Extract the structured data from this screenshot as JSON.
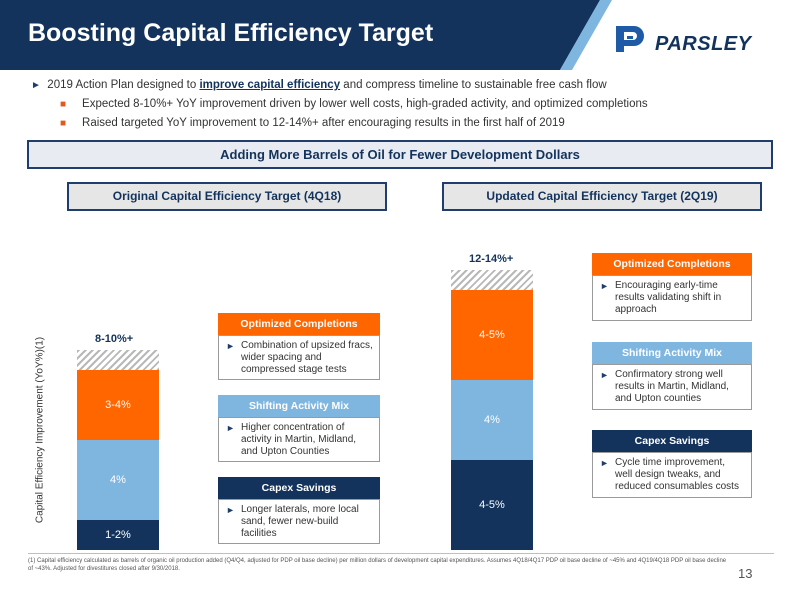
{
  "header": {
    "title": "Boosting Capital Efficiency Target",
    "logo_text": "PARSLEY",
    "colors": {
      "navy": "#13335c",
      "orange": "#ff6600",
      "light_blue": "#7fb6e0",
      "banner_bg": "#e8ebf1"
    }
  },
  "bullets": {
    "main_prefix": "2019 Action Plan designed to ",
    "main_emphasis": "improve capital efficiency",
    "main_suffix": " and compress timeline to sustainable free cash flow",
    "sub": [
      "Expected 8-10%+ YoY improvement driven by lower well costs, high-graded activity, and optimized completions",
      "Raised targeted YoY improvement to 12-14%+ after encouraging results in the first half of 2019"
    ]
  },
  "banner": "Adding More Barrels of Oil for Fewer Development Dollars",
  "y_axis_label": "Capital Efficiency Improvement (YoY%)(1)",
  "original": {
    "label": "Original Capital Efficiency Target (4Q18)",
    "total": "8-10%+",
    "segments": [
      {
        "name": "Capex Savings",
        "label": "1-2%",
        "value": 1.5,
        "color": "#13335c"
      },
      {
        "name": "Shifting Activity Mix",
        "label": "4%",
        "value": 4,
        "color": "#7fb6e0"
      },
      {
        "name": "Optimized Completions",
        "label": "3-4%",
        "value": 3.5,
        "color": "#ff6600"
      }
    ],
    "boxes": {
      "optimized": {
        "title": "Optimized Completions",
        "text": "Combination of upsized fracs, wider spacing and compressed stage tests"
      },
      "shifting": {
        "title": "Shifting Activity Mix",
        "text": "Higher concentration of activity in Martin, Midland, and Upton Counties"
      },
      "capex": {
        "title": "Capex Savings",
        "text": "Longer laterals, more local sand, fewer new-build facilities"
      }
    }
  },
  "updated": {
    "label": "Updated Capital Efficiency Target (2Q19)",
    "total": "12-14%+",
    "segments": [
      {
        "name": "Capex Savings",
        "label": "4-5%",
        "value": 4.5,
        "color": "#13335c"
      },
      {
        "name": "Shifting Activity Mix",
        "label": "4%",
        "value": 4,
        "color": "#7fb6e0"
      },
      {
        "name": "Optimized Completions",
        "label": "4-5%",
        "value": 4.5,
        "color": "#ff6600"
      }
    ],
    "boxes": {
      "optimized": {
        "title": "Optimized Completions",
        "text": "Encouraging early-time results validating shift in approach"
      },
      "shifting": {
        "title": "Shifting Activity Mix",
        "text": "Confirmatory strong well results in Martin, Midland, and Upton counties"
      },
      "capex": {
        "title": "Capex Savings",
        "text": "Cycle time improvement, well design tweaks, and reduced consumables costs"
      }
    }
  },
  "footnote": "(1) Capital efficiency calculated as barrels of organic oil production added (Q4/Q4, adjusted for PDP oil base decline) per million dollars of development capital expenditures. Assumes 4Q18/4Q17 PDP oil base decline of ~45% and 4Q19/4Q18 PDP oil base decline of ~43%. Adjusted for divestitures closed after 9/30/2018.",
  "page_number": "13"
}
